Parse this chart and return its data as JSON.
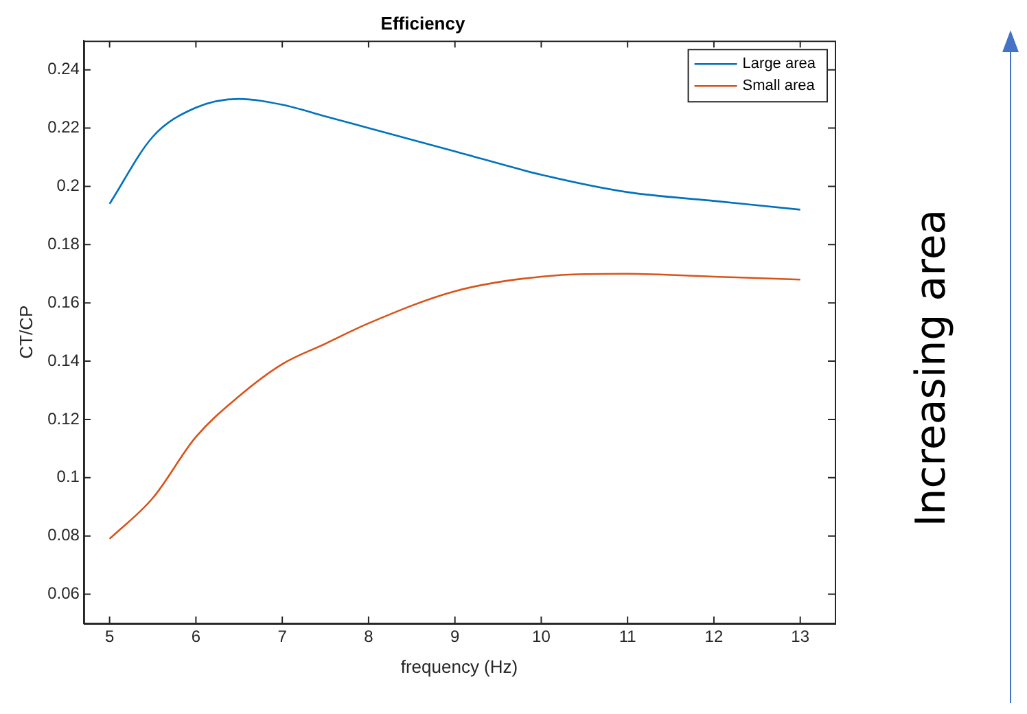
{
  "chart_data": {
    "type": "line",
    "title": "Efficiency",
    "xlabel": "frequency (Hz)",
    "ylabel": "CT/CP",
    "xlim": [
      4.7,
      13.4
    ],
    "xticks": [
      5,
      6,
      7,
      8,
      9,
      10,
      11,
      12,
      13
    ],
    "ylim": [
      0.05,
      0.25
    ],
    "yticks": [
      0.06,
      0.08,
      0.1,
      0.12,
      0.14,
      0.16,
      0.18,
      0.2,
      0.22,
      0.24
    ],
    "x": [
      5,
      5.5,
      6,
      6.5,
      7,
      7.5,
      8,
      9,
      10,
      11,
      12,
      13
    ],
    "series": [
      {
        "name": "Large area",
        "color": "#0072bd",
        "values": [
          0.194,
          0.217,
          0.227,
          0.23,
          0.228,
          0.224,
          0.22,
          0.212,
          0.204,
          0.198,
          0.195,
          0.192
        ]
      },
      {
        "name": "Small area",
        "color": "#d95319",
        "values": [
          0.079,
          0.093,
          0.114,
          0.128,
          0.139,
          0.146,
          0.153,
          0.164,
          0.169,
          0.17,
          0.169,
          0.168
        ]
      }
    ],
    "legend": "top right",
    "grid": false,
    "marker": "none",
    "line_style": "solid",
    "annotations": [
      "Increasing area"
    ]
  }
}
